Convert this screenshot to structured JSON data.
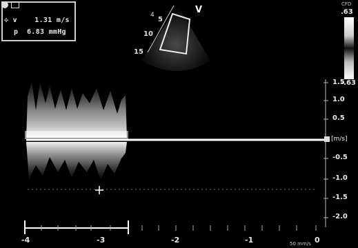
{
  "header": {
    "indicator_icon": "record-dot-icon",
    "mode_icon": "probe-icon"
  },
  "measurements": {
    "velocity_symbol": "✣ v",
    "velocity_value": "1.31 m/s",
    "pressure_symbol": "p",
    "pressure_value": "6.83 mmHg"
  },
  "sector": {
    "marker": "V",
    "depth_labels": [
      "5",
      "10",
      "15"
    ]
  },
  "colorbar": {
    "label": "CFD",
    "top_value": ".63",
    "bottom_value": "-.63"
  },
  "velocity_scale": {
    "unit": "[m/s]",
    "ticks": [
      "1.5",
      "1.0",
      "0.5",
      "-0.5",
      "-1.0",
      "-1.5",
      "-2.0"
    ]
  },
  "time_axis": {
    "ticks": [
      "-4",
      "-3",
      "-2",
      "-1",
      "0"
    ],
    "sweep_speed": "50 mm/s"
  }
}
